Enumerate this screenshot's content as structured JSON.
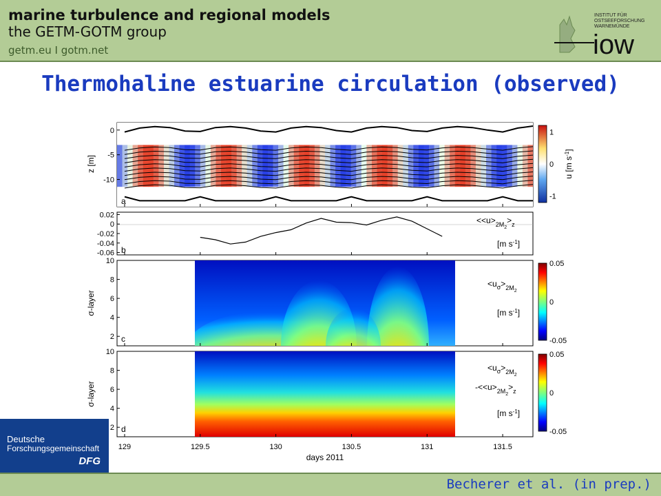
{
  "header": {
    "org_title": "marine turbulence and regional models",
    "org_subtitle": "the GETM-GOTM group",
    "links": "getm.eu  I  gotm.net",
    "logo_text_1": "INSTITUT FÜR",
    "logo_text_2": "OSTSEEFORSCHUNG",
    "logo_text_3": "WARNEMÜNDE",
    "logo_word": "iow"
  },
  "slide_title": "Thermohaline estuarine circulation (observed)",
  "sponsor": {
    "line1": "Deutsche",
    "line2": "Forschungsgemeinschaft",
    "line3": "DFG"
  },
  "footer": {
    "citation": "Becherer et al. (in prep.)"
  },
  "colors": {
    "header_bg": "#b3cc96",
    "title": "#1a3bbf",
    "dfg_bg": "#123f8c"
  },
  "chart_data": [
    {
      "panel": "a",
      "type": "heatmap",
      "ylabel": "z [m]",
      "yticks": [
        0,
        -5,
        -10
      ],
      "ylim": [
        -15.5,
        1.5
      ],
      "colorbar_label": "u [m s-1]",
      "colorbar_ticks": [
        1,
        0,
        -1
      ],
      "clim": [
        -1.2,
        1.2
      ],
      "x": [
        129.0,
        129.1,
        129.2,
        129.3,
        129.4,
        129.5,
        129.6,
        129.7,
        129.8,
        129.9,
        130.0,
        130.1,
        130.2,
        130.3,
        130.4,
        130.5,
        130.6,
        130.7,
        130.8,
        130.9,
        131.0,
        131.1,
        131.2,
        131.3,
        131.4,
        131.5,
        131.6,
        131.7
      ],
      "surface_z": [
        -0.4,
        0.4,
        0.7,
        0.5,
        -0.2,
        -0.3,
        0.5,
        0.7,
        0.4,
        -0.2,
        -0.4,
        0.4,
        0.7,
        0.5,
        -0.1,
        -0.4,
        0.4,
        0.7,
        0.5,
        -0.1,
        -0.3,
        0.4,
        0.7,
        0.5,
        0.0,
        -0.4,
        0.4,
        0.8
      ],
      "near_surface_u_pattern": "alternating positive (red) and negative (blue) bands with the semidiurnal tide"
    },
    {
      "panel": "b",
      "type": "line",
      "series": [
        {
          "name": "<<u>2M2>z",
          "x": [
            129.5,
            129.6,
            129.7,
            129.8,
            129.9,
            130.0,
            130.1,
            130.2,
            130.3,
            130.4,
            130.5,
            130.6,
            130.7,
            130.8,
            130.9,
            131.0,
            131.1
          ],
          "values": [
            -0.028,
            -0.033,
            -0.042,
            -0.038,
            -0.026,
            -0.018,
            -0.012,
            0.002,
            0.012,
            0.004,
            0.003,
            -0.002,
            0.008,
            0.015,
            0.006,
            -0.01,
            -0.026
          ]
        }
      ],
      "yticks": [
        0.02,
        0,
        -0.02,
        -0.04,
        -0.06
      ],
      "ylim": [
        -0.065,
        0.025
      ],
      "unit_label": "[m s-1]"
    },
    {
      "panel": "c",
      "type": "heatmap",
      "ylabel": "σ-layer",
      "yticks": [
        2,
        4,
        6,
        8,
        10
      ],
      "ylim": [
        1,
        10
      ],
      "x_range": [
        129.5,
        131.2
      ],
      "colorbar_label": "<uσ>2M2 [m s-1]",
      "colorbar_ticks": [
        0.05,
        0,
        -0.05
      ],
      "clim": [
        -0.05,
        0.05
      ]
    },
    {
      "panel": "d",
      "type": "heatmap",
      "ylabel": "σ-layer",
      "yticks": [
        2,
        4,
        6,
        8,
        10
      ],
      "ylim": [
        1,
        10
      ],
      "x_range": [
        129.5,
        131.2
      ],
      "xlabel": "days 2011",
      "xticks": [
        129,
        129.5,
        130,
        130.5,
        131,
        131.5
      ],
      "xlim": [
        128.95,
        131.7
      ],
      "colorbar_label": "<uσ>2M2 -<<u>2M2>z [m s-1]",
      "colorbar_ticks": [
        0.05,
        0,
        -0.05
      ],
      "clim": [
        -0.05,
        0.05
      ]
    }
  ],
  "figure_text": {
    "a": {
      "label": "a",
      "ylabel": "z [m]",
      "ticks": [
        "0",
        "-5",
        "-10"
      ],
      "cbar_label": "u [m s",
      "cbar_exp": "-1",
      "cbar_close": "]",
      "cbar_ticks": [
        "1",
        "0",
        "-1"
      ]
    },
    "b": {
      "label": "b",
      "ticks": [
        "0.02",
        "0",
        "-0.02",
        "-0.04",
        "-0.06"
      ],
      "leg_main": "<<u>",
      "leg_sub": "2M",
      "leg_sub2": "2",
      "leg_tail": ">",
      "leg_z": "z",
      "unit": "[m s",
      "unit_exp": "-1",
      "unit_close": "]"
    },
    "c": {
      "label": "c",
      "ylabel": "σ-layer",
      "ticks": [
        "2",
        "4",
        "6",
        "8",
        "10"
      ],
      "leg_main": "<u",
      "leg_sig": "σ",
      "leg_tail": ">",
      "leg_sub": "2M",
      "leg_sub2": "2",
      "unit": "[m s",
      "unit_exp": "-1",
      "unit_close": "]",
      "cbar_ticks": [
        "0.05",
        "0",
        "-0.05"
      ]
    },
    "d": {
      "label": "d",
      "ylabel": "σ-layer",
      "ticks": [
        "2",
        "4",
        "6",
        "8",
        "10"
      ],
      "leg_main": "<u",
      "leg_sig": "σ",
      "leg_tail": ">",
      "leg_sub": "2M",
      "leg_sub2": "2",
      "leg2_main": "-<<u>",
      "leg2_sub": "2M",
      "leg2_sub2": "2",
      "leg2_tail": ">",
      "leg2_z": "z",
      "unit": "[m s",
      "unit_exp": "-1",
      "unit_close": "]",
      "cbar_ticks": [
        "0.05",
        "0",
        "-0.05"
      ],
      "xlabel": "days 2011",
      "xticks": [
        "129",
        "129.5",
        "130",
        "130.5",
        "131",
        "131.5"
      ]
    }
  }
}
